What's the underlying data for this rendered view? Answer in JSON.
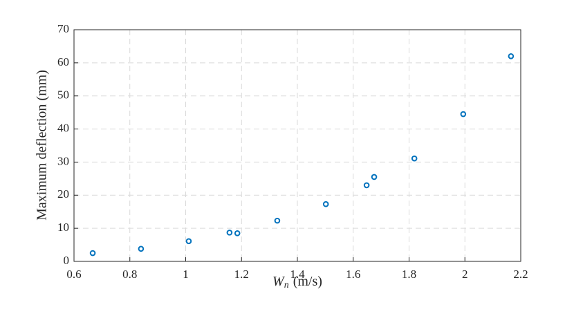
{
  "chart_data": {
    "type": "scatter",
    "xlabel": {
      "symbol": "W",
      "subscript": "n",
      "unit": "(m/s)"
    },
    "ylabel": "Maximum deflection (mm)",
    "series": [
      {
        "color": "#0072bd",
        "x": [
          0.667,
          0.84,
          1.011,
          1.157,
          1.185,
          1.328,
          1.502,
          1.648,
          1.675,
          1.819,
          1.994,
          2.165
        ],
        "values": [
          2.5,
          3.8,
          6.1,
          8.7,
          8.5,
          12.3,
          17.3,
          23.0,
          25.5,
          31.1,
          44.5,
          62.0
        ]
      }
    ],
    "xlim": [
      0.6,
      2.2
    ],
    "xticks": [
      0.6,
      0.8,
      1,
      1.2,
      1.4,
      1.6,
      1.8,
      2,
      2.2
    ],
    "ylim": [
      0,
      70
    ],
    "yticks": [
      0,
      10,
      20,
      30,
      40,
      50,
      60,
      70
    ],
    "grid": true
  }
}
